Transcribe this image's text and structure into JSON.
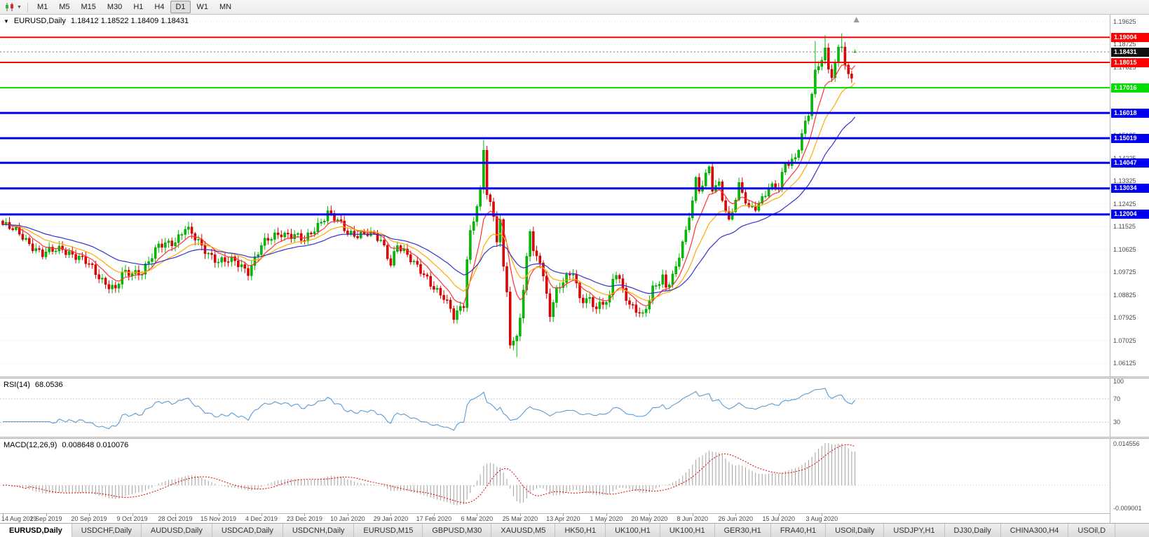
{
  "toolbar": {
    "timeframes": [
      "M1",
      "M5",
      "M15",
      "M30",
      "H1",
      "H4",
      "D1",
      "W1",
      "MN"
    ],
    "active_timeframe": "D1"
  },
  "chart_data": {
    "type": "candlestick",
    "title": "EURUSD,Daily",
    "ohlc_label": "1.18412 1.18522 1.18409 1.18431",
    "open": 1.18412,
    "high": 1.18522,
    "low": 1.18409,
    "close": 1.18431,
    "current_price_label": "1.18431",
    "current_price_color": "#111111",
    "up_color": "#00be00",
    "up_stroke": "#009100",
    "down_color": "#e60000",
    "down_stroke": "#a80000",
    "y_axis": {
      "min": 1.056,
      "max": 1.199,
      "tick_labels": [
        "1.19625",
        "1.18725",
        "1.17825",
        "1.16925",
        "1.16025",
        "1.15125",
        "1.14225",
        "1.13325",
        "1.12425",
        "1.11525",
        "1.10625",
        "1.09725",
        "1.08825",
        "1.07925",
        "1.07025",
        "1.06125"
      ]
    },
    "x_tick_labels": [
      "14 Aug 2019",
      "2 Sep 2019",
      "20 Sep 2019",
      "9 Oct 2019",
      "28 Oct 2019",
      "15 Nov 2019",
      "4 Dec 2019",
      "23 Dec 2019",
      "10 Jan 2020",
      "29 Jan 2020",
      "17 Feb 2020",
      "6 Mar 2020",
      "25 Mar 2020",
      "13 Apr 2020",
      "1 May 2020",
      "20 May 2020",
      "8 Jun 2020",
      "26 Jun 2020",
      "15 Jul 2020",
      "3 Aug 2020"
    ],
    "bars_total": 258,
    "bars_per_label": 13,
    "horizontal_lines": [
      {
        "price": 1.19004,
        "label": "1.19004",
        "color": "#ff0000",
        "width": 2
      },
      {
        "price": 1.18015,
        "label": "1.18015",
        "color": "#ff0000",
        "width": 2
      },
      {
        "price": 1.17016,
        "label": "1.17016",
        "color": "#00dd00",
        "width": 2
      },
      {
        "price": 1.16018,
        "label": "1.16018",
        "color": "#0000ee",
        "width": 3
      },
      {
        "price": 1.15019,
        "label": "1.15019",
        "color": "#0000ee",
        "width": 3
      },
      {
        "price": 1.14047,
        "label": "1.14047",
        "color": "#0000ee",
        "width": 3
      },
      {
        "price": 1.13034,
        "label": "1.13034",
        "color": "#0000ee",
        "width": 3
      },
      {
        "price": 1.12004,
        "label": "1.12004",
        "color": "#0000ee",
        "width": 3
      }
    ],
    "moving_averages": [
      {
        "period": 8,
        "color": "#ff3333"
      },
      {
        "period": 17,
        "color": "#ffaa00"
      },
      {
        "period": 34,
        "color": "#3333cc"
      }
    ],
    "indicators": {
      "rsi": {
        "label": "RSI(14)",
        "value": "68.0536",
        "period": 14,
        "levels": [
          100,
          70,
          30
        ],
        "level_labels": [
          "100",
          "70",
          "30"
        ],
        "color": "#5a9bd4"
      },
      "macd": {
        "label": "MACD(12,26,9)",
        "values": "0.008648 0.010076",
        "fast": 12,
        "slow": 26,
        "signal": 9,
        "scale_max_label": "0.014556",
        "scale_min_label": "-0.009001",
        "hist_color": "#a0a0a0",
        "signal_color": "#e00000"
      }
    },
    "waypoints": [
      [
        0,
        1.116
      ],
      [
        6,
        1.1115
      ],
      [
        12,
        1.104
      ],
      [
        18,
        1.107
      ],
      [
        26,
        1.1
      ],
      [
        30,
        1.0945
      ],
      [
        34,
        1.09
      ],
      [
        36,
        1.096
      ],
      [
        42,
        1.098
      ],
      [
        47,
        1.107
      ],
      [
        52,
        1.11
      ],
      [
        55,
        1.115
      ],
      [
        60,
        1.107
      ],
      [
        65,
        1.102
      ],
      [
        70,
        1.101
      ],
      [
        74,
        1.098
      ],
      [
        78,
        1.1077
      ],
      [
        84,
        1.113
      ],
      [
        88,
        1.112
      ],
      [
        91,
        1.109
      ],
      [
        98,
        1.1213
      ],
      [
        101,
        1.117
      ],
      [
        104,
        1.1122
      ],
      [
        110,
        1.113
      ],
      [
        114,
        1.109
      ],
      [
        117,
        1.101
      ],
      [
        119,
        1.109
      ],
      [
        124,
        1.1
      ],
      [
        128,
        1.095
      ],
      [
        133,
        1.087
      ],
      [
        136,
        1.079
      ],
      [
        139,
        1.085
      ],
      [
        140,
        1.103
      ],
      [
        141,
        1.1134
      ],
      [
        143,
        1.124
      ],
      [
        144,
        1.1284
      ],
      [
        145,
        1.145
      ],
      [
        146,
        1.128
      ],
      [
        148,
        1.1185
      ],
      [
        149,
        1.1105
      ],
      [
        150,
        1.118
      ],
      [
        151,
        1.0995
      ],
      [
        152,
        1.0915
      ],
      [
        153,
        1.069
      ],
      [
        154,
        1.069
      ],
      [
        155,
        1.0725
      ],
      [
        156,
        1.079
      ],
      [
        157,
        1.088
      ],
      [
        158,
        1.103
      ],
      [
        159,
        1.114
      ],
      [
        160,
        1.1047
      ],
      [
        162,
        1.103
      ],
      [
        163,
        1.096
      ],
      [
        165,
        1.081
      ],
      [
        167,
        1.089
      ],
      [
        169,
        1.093
      ],
      [
        172,
        1.098
      ],
      [
        174,
        1.0875
      ],
      [
        177,
        1.086
      ],
      [
        179,
        1.082
      ],
      [
        183,
        1.0875
      ],
      [
        184,
        1.0955
      ],
      [
        185,
        1.098
      ],
      [
        189,
        1.0833
      ],
      [
        193,
        1.08
      ],
      [
        196,
        1.0915
      ],
      [
        199,
        1.095
      ],
      [
        200,
        1.09
      ],
      [
        203,
        1.098
      ],
      [
        205,
        1.11
      ],
      [
        206,
        1.1135
      ],
      [
        209,
        1.1337
      ],
      [
        210,
        1.129
      ],
      [
        213,
        1.1375
      ],
      [
        214,
        1.13
      ],
      [
        216,
        1.1324
      ],
      [
        219,
        1.1175
      ],
      [
        222,
        1.1308
      ],
      [
        225,
        1.1219
      ],
      [
        227,
        1.1234
      ],
      [
        228,
        1.125
      ],
      [
        231,
        1.131
      ],
      [
        234,
        1.13
      ],
      [
        236,
        1.1395
      ],
      [
        239,
        1.1427
      ],
      [
        241,
        1.1525
      ],
      [
        243,
        1.1598
      ],
      [
        245,
        1.175
      ],
      [
        248,
        1.1847
      ],
      [
        249,
        1.1778
      ],
      [
        250,
        1.1762
      ],
      [
        251,
        1.1803
      ],
      [
        252,
        1.1862
      ],
      [
        253,
        1.1878
      ],
      [
        254,
        1.1787
      ],
      [
        255,
        1.1738
      ],
      [
        256,
        1.174
      ],
      [
        257,
        1.1843
      ]
    ],
    "spikes": [
      {
        "i": 145,
        "h": 1.1495
      },
      {
        "i": 153,
        "l": 1.067
      },
      {
        "i": 155,
        "l": 1.0636
      },
      {
        "i": 245,
        "h": 1.1886
      },
      {
        "i": 248,
        "h": 1.1909
      },
      {
        "i": 253,
        "h": 1.1916
      }
    ]
  },
  "symbol_tabs": {
    "active_index": 0,
    "items": [
      "EURUSD,Daily",
      "USDCHF,Daily",
      "AUDUSD,Daily",
      "USDCAD,Daily",
      "USDCNH,Daily",
      "EURUSD,M15",
      "GBPUSD,M30",
      "XAUUSD,M5",
      "HK50,H1",
      "UK100,H1",
      "UK100,H1",
      "GER30,H1",
      "FRA40,H1",
      "USOil,Daily",
      "USDJPY,H1",
      "DJ30,Daily",
      "CHINA300,H4",
      "USOil,D"
    ]
  }
}
